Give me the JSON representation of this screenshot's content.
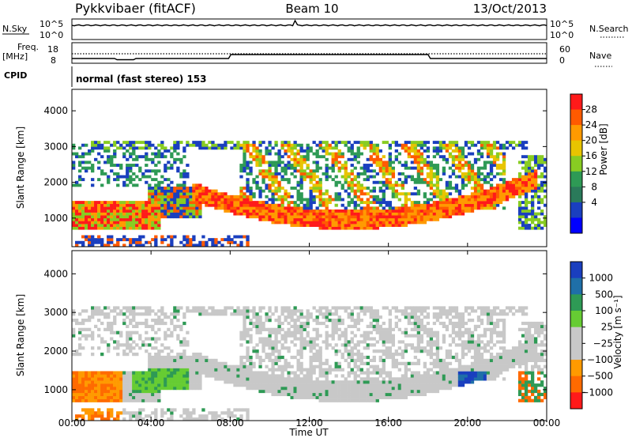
{
  "header": {
    "station": "Pykkvibaer (fitACF)",
    "beam": "Beam 10",
    "date": "13/Oct/2013"
  },
  "top_panels": {
    "nsky_label": "N.Sky",
    "nsearch_label": "N.Search",
    "nsky_ticks": [
      "10^5",
      "10^0"
    ],
    "nsearch_ticks": [
      "10^5",
      "10^0"
    ],
    "freq_label_1": "Freq.",
    "freq_label_2": "[MHz]",
    "freq_ticks": [
      "18",
      "8"
    ],
    "nave_label": "Nave",
    "nave_ticks": [
      "60",
      "0"
    ],
    "cpid_label": "CPID",
    "cpid_text": "normal (fast stereo) 153"
  },
  "chart_data": [
    {
      "type": "heatmap",
      "name": "power",
      "ylabel": "Slant Range [km]",
      "yticks": [
        1000,
        2000,
        3000,
        4000
      ],
      "ylim": [
        200,
        4600
      ],
      "xlim": [
        0,
        24
      ],
      "xticks": [
        0,
        4,
        8,
        12,
        16,
        20,
        24
      ],
      "colorbar": {
        "label": "Power [dB]",
        "ticks": [
          "28",
          "24",
          "20",
          "16",
          "12",
          "8",
          "4"
        ],
        "colors": [
          "#ff1a1a",
          "#ff5a00",
          "#ff9a00",
          "#e8c400",
          "#88cc22",
          "#2e9a55",
          "#2a7a5a",
          "#1a3fbf",
          "#0000ff"
        ]
      }
    },
    {
      "type": "heatmap",
      "name": "velocity",
      "ylabel": "Slant Range [km]",
      "yticks": [
        1000,
        2000,
        3000,
        4000
      ],
      "ylim": [
        200,
        4600
      ],
      "xlim": [
        0,
        24
      ],
      "xticks": [
        0,
        4,
        8,
        12,
        16,
        20,
        24
      ],
      "xtick_labels": [
        "00:00",
        "04:00",
        "08:00",
        "12:00",
        "16:00",
        "20:00",
        "00:00"
      ],
      "xlabel": "Time UT",
      "colorbar": {
        "label": "Velocity [m s⁻¹]",
        "ticks": [
          "1000",
          "500",
          "100",
          "25",
          "−25",
          "−100",
          "−500",
          "−1000"
        ],
        "colors": [
          "#1a3fbf",
          "#1f6fa8",
          "#2e9a55",
          "#66cc33",
          "#c8c8c8",
          "#c8c8c8",
          "#ff9a00",
          "#ff6a00",
          "#ff1a1a"
        ]
      }
    }
  ]
}
